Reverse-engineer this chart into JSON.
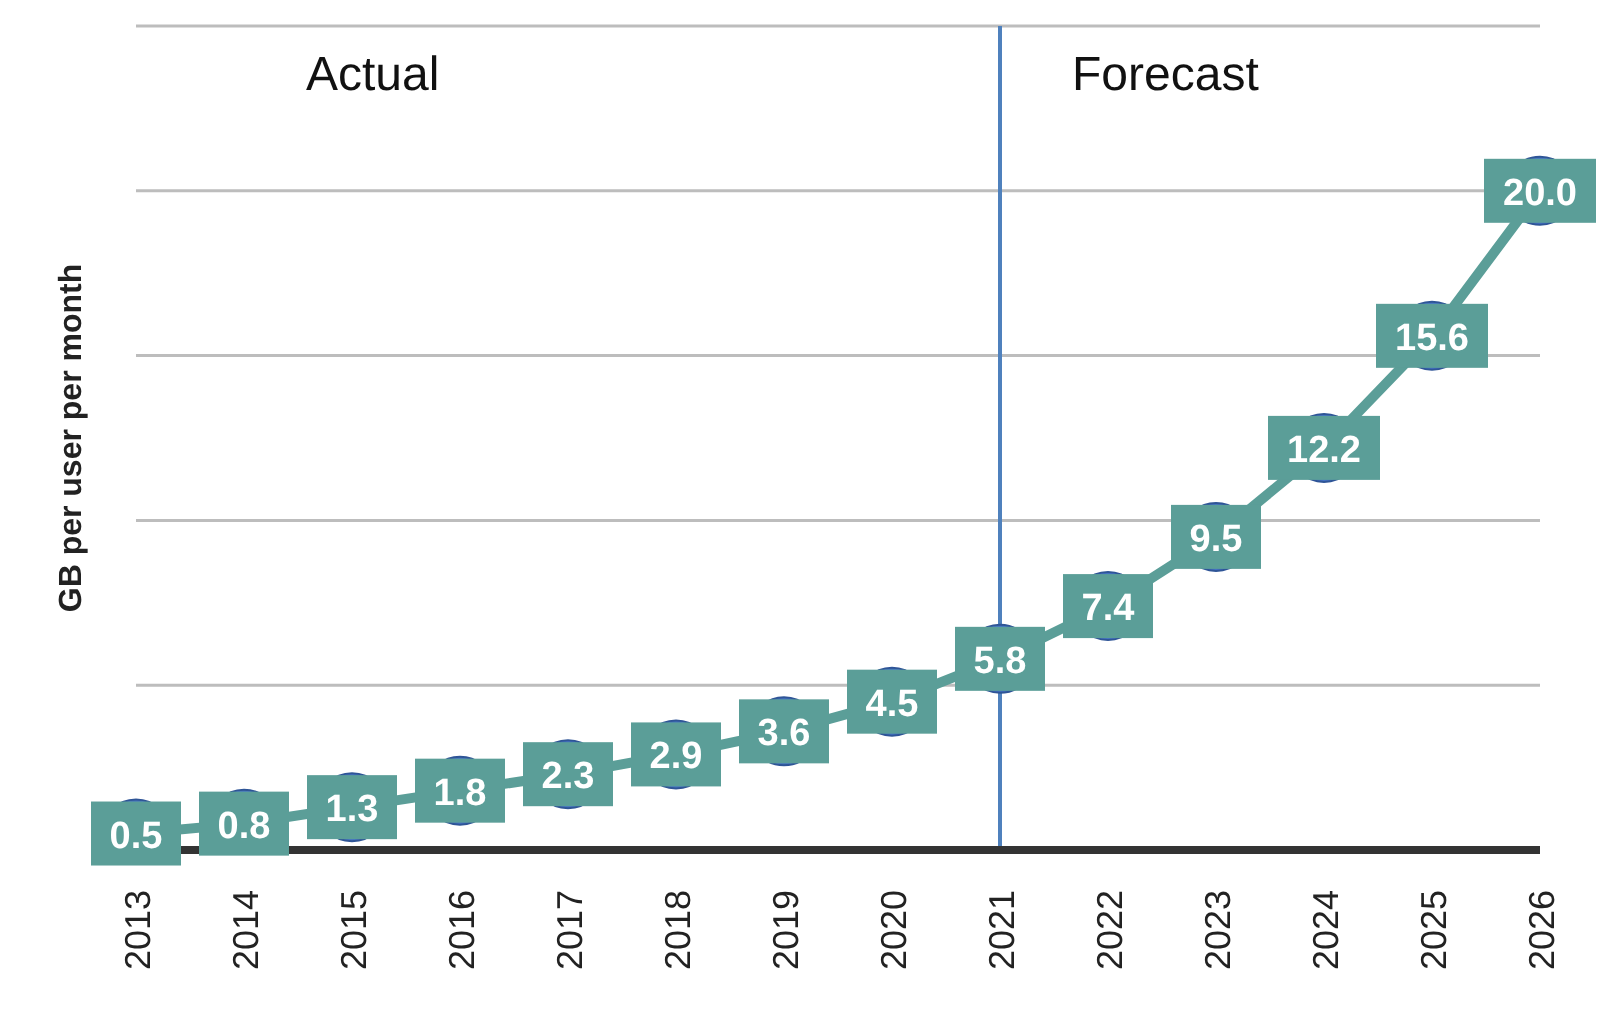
{
  "chart_data": {
    "type": "line",
    "ylabel": "GB per user per month",
    "categories": [
      "2013",
      "2014",
      "2015",
      "2016",
      "2017",
      "2018",
      "2019",
      "2020",
      "2021",
      "2022",
      "2023",
      "2024",
      "2025",
      "2026"
    ],
    "series": [
      {
        "color": "#5b9e98",
        "values": [
          0.5,
          0.8,
          1.3,
          1.8,
          2.3,
          2.9,
          3.6,
          4.5,
          5.8,
          7.4,
          9.5,
          12.2,
          15.6,
          20.0
        ],
        "value_labels": [
          "0.5",
          "0.8",
          "1.3",
          "1.8",
          "2.3",
          "2.9",
          "3.6",
          "4.5",
          "5.8",
          "7.4",
          "9.5",
          "12.2",
          "15.6",
          "20.0"
        ]
      }
    ],
    "ylim": [
      0,
      25
    ],
    "yticks": [
      {
        "value": 0,
        "label": null
      },
      {
        "value": 5,
        "label": null
      },
      {
        "value": 10,
        "label": null
      },
      {
        "value": 15,
        "label": null
      },
      {
        "value": 20,
        "label": null
      },
      {
        "value": 25,
        "label": null
      }
    ],
    "tick_labels": "x",
    "grid": "y",
    "marker": "circle",
    "ref_lines": [
      {
        "axis": "x",
        "value": "2021",
        "color": "#4f81bd"
      }
    ],
    "annotations": [
      "Actual",
      "Forecast"
    ]
  }
}
